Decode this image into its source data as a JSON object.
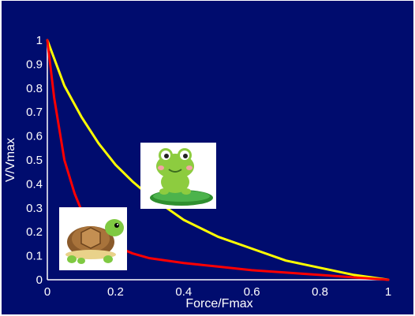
{
  "chart_data": {
    "type": "line",
    "title": "",
    "xlabel": "Force/Fmax",
    "ylabel": "V/Vmax",
    "xlim": [
      0,
      1
    ],
    "ylim": [
      0,
      1
    ],
    "x_ticks": [
      "0",
      "0.2",
      "0.4",
      "0.6",
      "0.8",
      "1"
    ],
    "y_ticks": [
      "0",
      "0.1",
      "0.2",
      "0.3",
      "0.4",
      "0.5",
      "0.6",
      "0.7",
      "0.8",
      "0.9",
      "1"
    ],
    "grid": false,
    "legend": "none",
    "series": [
      {
        "color": "#ffff00",
        "x": [
          0,
          0.05,
          0.1,
          0.15,
          0.2,
          0.25,
          0.3,
          0.35,
          0.4,
          0.5,
          0.6,
          0.7,
          0.8,
          0.9,
          1.0
        ],
        "y": [
          1.0,
          0.81,
          0.68,
          0.57,
          0.48,
          0.41,
          0.35,
          0.3,
          0.25,
          0.18,
          0.13,
          0.08,
          0.05,
          0.02,
          0.0
        ]
      },
      {
        "color": "#ff0000",
        "x": [
          0,
          0.02,
          0.05,
          0.08,
          0.1,
          0.15,
          0.2,
          0.25,
          0.3,
          0.4,
          0.5,
          0.6,
          0.7,
          0.8,
          0.9,
          1.0
        ],
        "y": [
          1.0,
          0.76,
          0.5,
          0.36,
          0.29,
          0.2,
          0.14,
          0.11,
          0.09,
          0.07,
          0.055,
          0.04,
          0.03,
          0.02,
          0.01,
          0.0
        ]
      }
    ],
    "images": [
      {
        "icon": "turtle-icon",
        "near": "red curve"
      },
      {
        "icon": "frog-icon",
        "near": "yellow curve"
      }
    ]
  }
}
